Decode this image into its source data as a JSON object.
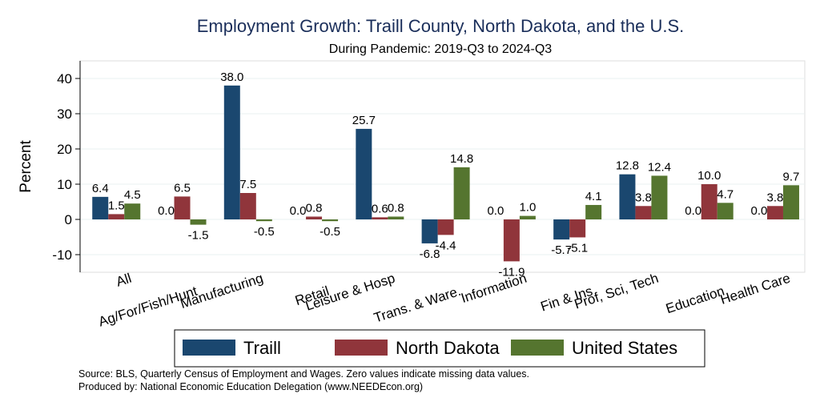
{
  "chart_data": {
    "type": "bar",
    "title": "Employment Growth: Traill County, North Dakota, and the U.S.",
    "subtitle": "During Pandemic: 2019-Q3 to 2024-Q3",
    "ylabel": "Percent",
    "xlabel": "",
    "ylim": [
      -15,
      45
    ],
    "yticks": [
      -10,
      0,
      10,
      20,
      30,
      40
    ],
    "grid": true,
    "legend_position": "bottom",
    "categories": [
      "All",
      "Ag/For/Fish/Hunt",
      "Manufacturing",
      "Retail",
      "Leisure & Hosp",
      "Trans. & Ware.",
      "Information",
      "Fin & Ins",
      "Prof, Sci, Tech",
      "Education",
      "Health Care"
    ],
    "series": [
      {
        "name": "Traill",
        "color": "#1a476f",
        "values": [
          6.4,
          0.0,
          38.0,
          0.0,
          25.7,
          -6.8,
          0.0,
          -5.7,
          12.8,
          0.0,
          0.0
        ],
        "labels": [
          "6.4",
          "0.0",
          "38.0",
          "0.0",
          "25.7",
          "-6.8",
          "0.0",
          "-5.7",
          "12.8",
          "0.0",
          "0.0"
        ]
      },
      {
        "name": "North Dakota",
        "color": "#90353b",
        "values": [
          1.5,
          6.5,
          7.5,
          0.8,
          0.6,
          -4.4,
          -11.9,
          -5.1,
          3.8,
          10.0,
          3.8
        ],
        "labels": [
          "1.5",
          "6.5",
          "7.5",
          "0.8",
          "0.6",
          "-4.4",
          "-11.9",
          "-5.1",
          "3.8",
          "10.0",
          "3.8"
        ]
      },
      {
        "name": "United States",
        "color": "#55752f",
        "values": [
          4.5,
          -1.5,
          -0.5,
          -0.5,
          0.8,
          14.8,
          1.0,
          4.1,
          12.4,
          4.7,
          9.7
        ],
        "labels": [
          "4.5",
          "-1.5",
          "-0.5",
          "-0.5",
          "0.8",
          "14.8",
          "1.0",
          "4.1",
          "12.4",
          "4.7",
          "9.7"
        ]
      }
    ],
    "notes": [
      "Source: BLS, Quarterly Census of Employment and Wages. Zero values indicate missing data values.",
      "Produced by: National Economic Education Delegation (www.NEEDEcon.org)"
    ]
  }
}
